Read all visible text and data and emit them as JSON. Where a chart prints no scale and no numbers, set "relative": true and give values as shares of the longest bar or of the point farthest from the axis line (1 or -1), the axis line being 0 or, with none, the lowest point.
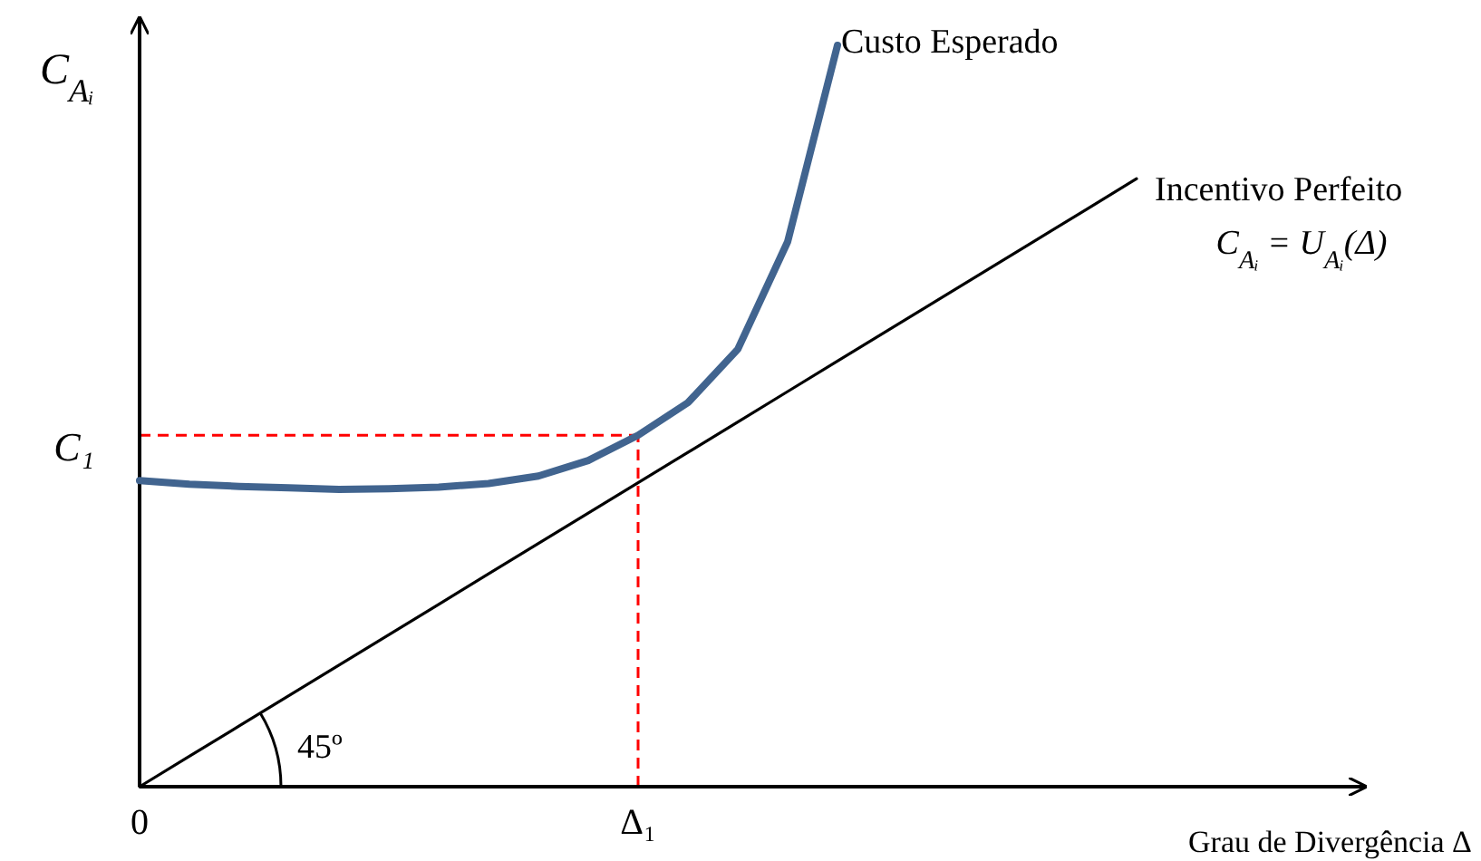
{
  "chart_data": {
    "type": "line",
    "relative": true,
    "xlabel": "Grau de Divergência Δ",
    "ylabel": "C$_{Aᵢ}$",
    "categories": [
      "0",
      null,
      null,
      null,
      null,
      null,
      null,
      null,
      null,
      null,
      "Δ₁",
      null,
      null,
      null,
      null,
      null,
      null,
      null,
      null,
      null,
      null
    ],
    "series": [
      {
        "name": "Custo Esperado",
        "color": "#41648f",
        "values": [
          0.413,
          0.408,
          0.405,
          0.403,
          0.401,
          0.402,
          0.404,
          0.409,
          0.419,
          0.44,
          0.474,
          0.518,
          0.59,
          0.735,
          1.0,
          null,
          null,
          null,
          null,
          null,
          null
        ]
      },
      {
        "name": "Incentivo Perfeito",
        "color": "#000000",
        "values": [
          0,
          0.041,
          0.082,
          0.123,
          0.164,
          0.205,
          0.246,
          0.287,
          0.328,
          0.369,
          0.41,
          0.451,
          0.492,
          0.533,
          0.574,
          0.615,
          0.656,
          0.697,
          0.738,
          0.779,
          0.82
        ]
      }
    ],
    "ref_lines": [
      {
        "axis": "y",
        "value": 0.474,
        "label": "C₁",
        "color": "#ff0000",
        "line_style": "dashed"
      },
      {
        "axis": "x",
        "value": "Δ₁",
        "label": null,
        "color": "#ff0000",
        "line_style": "dashed"
      }
    ],
    "annotations": [
      "C$_{Aᵢ}$ = U$_{Aᵢ}$(Δ)",
      "45º"
    ],
    "legend": false,
    "marker": "none",
    "line_style": "solid"
  }
}
